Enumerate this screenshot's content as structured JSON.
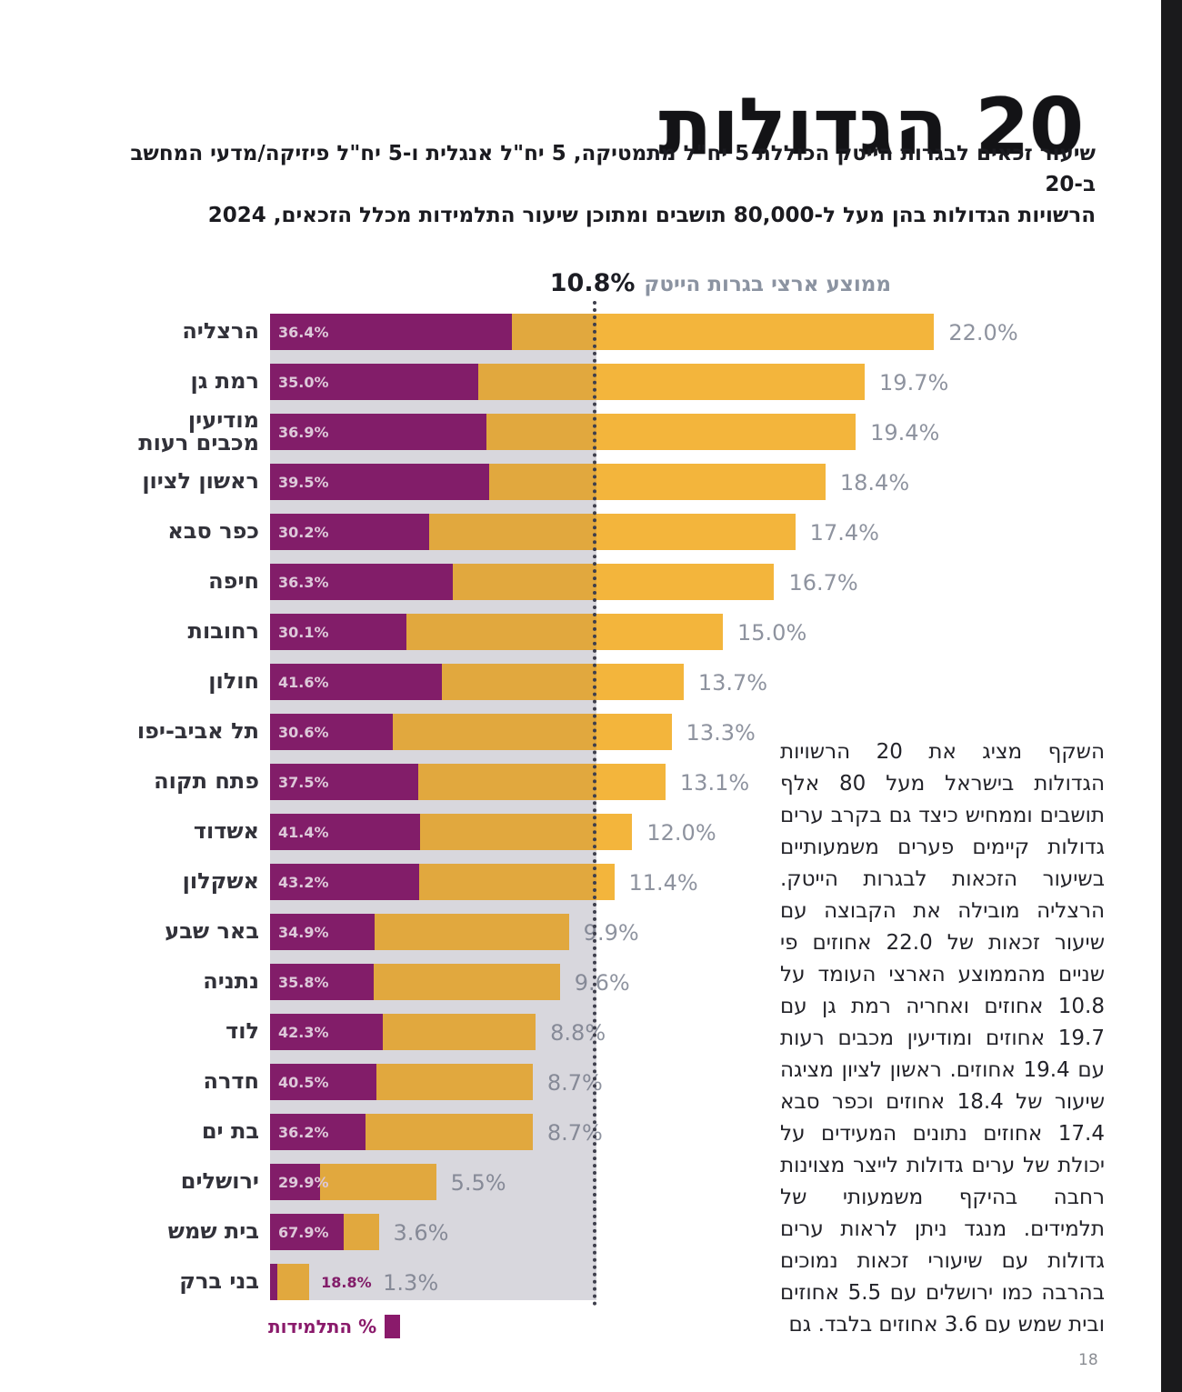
{
  "header": {
    "title": "20 הגדולות",
    "subtitle_line1": "שיעור זכאים לבגרות הייטק הכוללת 5 יח\"ל מתמטיקה, 5 יח\"ל אנגלית ו-5 יח\"ל פיזיקה/מדעי המחשב ב-20",
    "subtitle_line2": "הרשויות הגדולות בהן מעל ל-80,000 תושבים ומתוכן שיעור התלמידות מכלל הזכאים, 2024"
  },
  "chart_data": {
    "type": "bar",
    "orientation": "horizontal",
    "title": "",
    "categories": [
      "הרצליה",
      "רמת גן",
      "מודיעין\nמכבים רעות",
      "ראשון לציון",
      "כפר סבא",
      "חיפה",
      "רחובות",
      "חולון",
      "תל אביב-יפו",
      "פתח תקוה",
      "אשדוד",
      "אשקלון",
      "באר שבע",
      "נתניה",
      "לוד",
      "חדרה",
      "בת ים",
      "ירושלים",
      "בית שמש",
      "בני ברק"
    ],
    "series": [
      {
        "name": "שיעור זכאות לבגרות הייטק (%)",
        "values": [
          22.0,
          19.7,
          19.4,
          18.4,
          17.4,
          16.7,
          15.0,
          13.7,
          13.3,
          13.1,
          12.0,
          11.4,
          9.9,
          9.6,
          8.8,
          8.7,
          8.7,
          5.5,
          3.6,
          1.3
        ]
      },
      {
        "name": "% התלמידות מכלל הזכאים",
        "values": [
          36.4,
          35.0,
          36.9,
          39.5,
          30.2,
          36.3,
          30.1,
          41.6,
          30.6,
          37.5,
          41.4,
          43.2,
          34.9,
          35.8,
          42.3,
          40.5,
          36.2,
          29.9,
          67.9,
          18.8
        ]
      }
    ],
    "average": {
      "value": 10.8,
      "label": "ממוצע ארצי בגרות הייטק",
      "value_label": "10.8%"
    },
    "legend": {
      "students_label": "% התלמידות"
    },
    "xlim": [
      0,
      22.5
    ],
    "unit": "%",
    "grid": false,
    "colors": {
      "eligible_bar": "#f3b53c",
      "students_bar": "#8a1a6b",
      "below_average_band": "#e9e9ed",
      "average_line": "#3e3f4c",
      "value_label": "#8e939f"
    }
  },
  "aside": {
    "text": "השקף מציג את 20 הרשויות הגדולות בישראל מעל 80 אלף תושבים וממחיש כיצד גם בקרב ערים גדולות קיימים פערים משמעותיים בשיעור הזכאות לבגרות הייטק. הרצליה מובילה את הקבוצה עם שיעור זכאות של 22.0 אחוזים פי שניים מהממוצע הארצי העומד על 10.8 אחוזים ואחריה רמת גן עם 19.7 אחוזים ומודיעין מכבים רעות עם 19.4 אחוזים. ראשון לציון מציגה שיעור של 18.4 אחוזים וכפר סבא 17.4 אחוזים נתונים המעידים על יכולת של ערים גדולות לייצר מצוינות רחבה בהיקף משמעותי של תלמידים. מנגד ניתן לראות ערים גדולות עם שיעורי זכאות נמוכים בהרבה כמו ירושלים עם 5.5 אחוזים ובית שמש עם 3.6 אחוזים בלבד. גם"
  },
  "page": {
    "number": "18"
  }
}
